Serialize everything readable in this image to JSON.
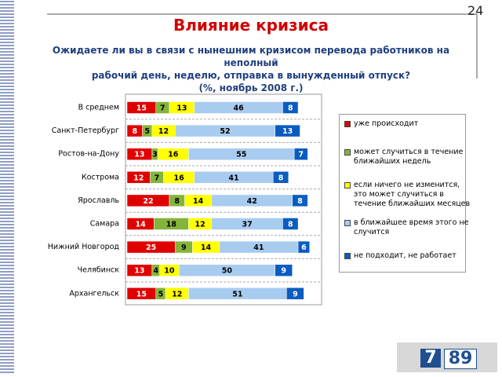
{
  "page_number": "24",
  "chart_data": {
    "type": "stacked-bar-horizontal",
    "title": "Влияние кризиса",
    "subtitle": [
      "Ожидаете ли вы в связи с нынешним кризисом перевода работников на неполный",
      "рабочий день, неделю, отправка в вынужденный отпуск?",
      "(%, ноябрь 2008 г.)"
    ],
    "categories": [
      "В среднем",
      "Санкт-Петербург",
      "Ростов-на-Дону",
      "Кострома",
      "Ярославль",
      "Самара",
      "Нижний Новгород",
      "Челябинск",
      "Архангельск"
    ],
    "xlim": [
      0,
      100
    ],
    "series": [
      {
        "name": "уже происходит",
        "color": "#e00000",
        "values": [
          15,
          8,
          13,
          12,
          22,
          14,
          25,
          13,
          15
        ]
      },
      {
        "name": "может случиться в течение ближайших недель",
        "color": "#84b43c",
        "values": [
          7,
          5,
          3,
          7,
          8,
          18,
          9,
          4,
          5
        ]
      },
      {
        "name": "если ничего не изменится, это может случиться в течение ближайших месяцев",
        "color": "#ffff00",
        "values": [
          13,
          12,
          16,
          16,
          14,
          12,
          14,
          10,
          12
        ]
      },
      {
        "name": "в ближайшее время этого не случится",
        "color": "#a8ccf0",
        "values": [
          46,
          52,
          55,
          41,
          42,
          37,
          41,
          50,
          51
        ]
      },
      {
        "name": "не подходит, не работает",
        "color": "#0a5cc0",
        "values": [
          8,
          13,
          7,
          8,
          8,
          8,
          6,
          9,
          9
        ]
      }
    ],
    "legend": "right"
  },
  "logo": [
    "7",
    "89"
  ]
}
